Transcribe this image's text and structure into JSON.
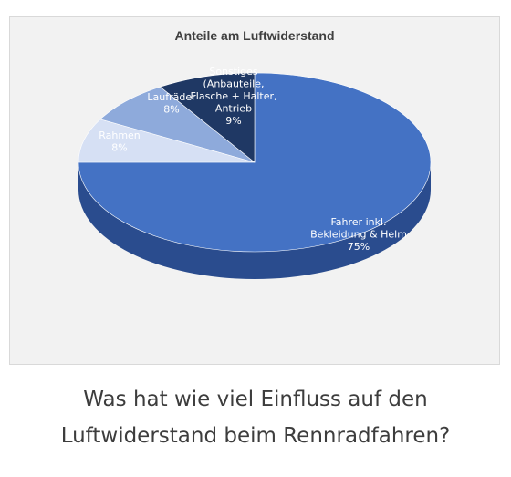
{
  "chart_data": {
    "type": "pie",
    "title": "Anteile am Luftwiderstand",
    "slices": [
      {
        "key": "fahrer",
        "label_lines": [
          "Fahrer inkl.",
          "Bekleidung & Helm",
          "75%"
        ],
        "value": 75,
        "color": "#4472c4",
        "side_color": "#2a4c8e"
      },
      {
        "key": "rahmen",
        "label_lines": [
          "Rahmen",
          "8%"
        ],
        "value": 8,
        "color": "#d6e0f4",
        "side_color": "#a9b8d6"
      },
      {
        "key": "laufraeder",
        "label_lines": [
          "Laufräder",
          "8%"
        ],
        "value": 8,
        "color": "#8eaadb",
        "side_color": "#6884b8"
      },
      {
        "key": "sonstiges",
        "label_lines": [
          "Sonstiges",
          "(Anbauteile,",
          "Flasche + Halter,",
          "Antrieb",
          "9%"
        ],
        "value": 9,
        "color": "#1f3864",
        "side_color": "#142544"
      }
    ]
  },
  "caption": {
    "line1": "Was hat wie viel Einfluss auf den",
    "line2": "Luftwiderstand beim Rennradfahren?"
  }
}
